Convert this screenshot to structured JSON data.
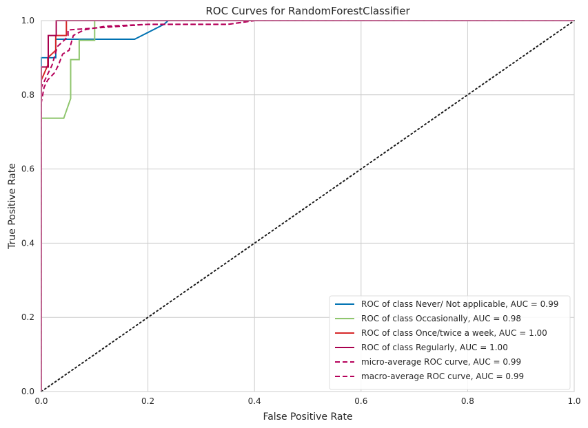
{
  "chart_data": {
    "type": "line",
    "title": "ROC Curves for RandomForestClassifier",
    "xlabel": "False Positive Rate",
    "ylabel": "True Positive Rate",
    "xlim": [
      0,
      1
    ],
    "ylim": [
      0,
      1
    ],
    "x_ticks": [
      "0.0",
      "0.2",
      "0.4",
      "0.6",
      "0.8",
      "1.0"
    ],
    "y_ticks": [
      "0.0",
      "0.2",
      "0.4",
      "0.6",
      "0.8",
      "1.0"
    ],
    "grid": true,
    "legend_position": "bottom-right",
    "series": [
      {
        "name": "ROC of class Never/ Not applicable, AUC = 0.99",
        "color": "#0072b2",
        "dash": "solid",
        "x": [
          0,
          0,
          0.027,
          0.027,
          0.175,
          0.23,
          0.238,
          1
        ],
        "y": [
          0,
          0.9,
          0.9,
          0.95,
          0.95,
          0.99,
          1,
          1
        ]
      },
      {
        "name": "ROC of class Occasionally, AUC = 0.98",
        "color": "#8fc66e",
        "dash": "solid",
        "x": [
          0,
          0,
          0.042,
          0.055,
          0.055,
          0.071,
          0.071,
          0.1,
          0.1,
          1
        ],
        "y": [
          0,
          0.737,
          0.737,
          0.79,
          0.895,
          0.895,
          0.947,
          0.947,
          1,
          1
        ]
      },
      {
        "name": "ROC of class Once/twice a week, AUC = 1.00",
        "color": "#d62728",
        "dash": "solid",
        "x": [
          0,
          0,
          0.012,
          0.012,
          0.027,
          0.027,
          0.047,
          0.047,
          0.095,
          1
        ],
        "y": [
          0,
          0.84,
          0.88,
          0.9,
          0.92,
          0.96,
          0.96,
          1,
          1,
          1
        ]
      },
      {
        "name": "ROC of class Regularly, AUC = 1.00",
        "color": "#a8004d",
        "dash": "solid",
        "x": [
          0,
          0,
          0.013,
          0.013,
          0.028,
          0.028,
          1
        ],
        "y": [
          0,
          0.875,
          0.875,
          0.96,
          0.96,
          1,
          1
        ]
      },
      {
        "name": "micro-average ROC curve, AUC = 0.99",
        "color": "#b5005a",
        "dash": "dashed",
        "x": [
          0,
          0,
          0.005,
          0.012,
          0.025,
          0.032,
          0.04,
          0.052,
          0.06,
          0.08,
          0.12,
          0.2,
          0.35,
          0.4,
          1
        ],
        "y": [
          0,
          0.78,
          0.82,
          0.84,
          0.86,
          0.88,
          0.91,
          0.92,
          0.96,
          0.975,
          0.985,
          0.99,
          0.99,
          1,
          1
        ]
      },
      {
        "name": "macro-average ROC curve, AUC = 0.99",
        "color": "#b5005a",
        "dash": "dashed",
        "x": [
          0,
          0,
          0.01,
          0.02,
          0.03,
          0.045,
          0.05,
          0.05,
          0.1,
          0.2,
          0.35,
          0.4,
          1
        ],
        "y": [
          0,
          0.82,
          0.85,
          0.88,
          0.93,
          0.95,
          0.96,
          0.975,
          0.98,
          0.99,
          0.99,
          1,
          1
        ]
      }
    ],
    "reference_line": {
      "x": [
        0,
        1
      ],
      "y": [
        0,
        1
      ],
      "color": "#1a1a1a",
      "dash": "dotted"
    }
  }
}
